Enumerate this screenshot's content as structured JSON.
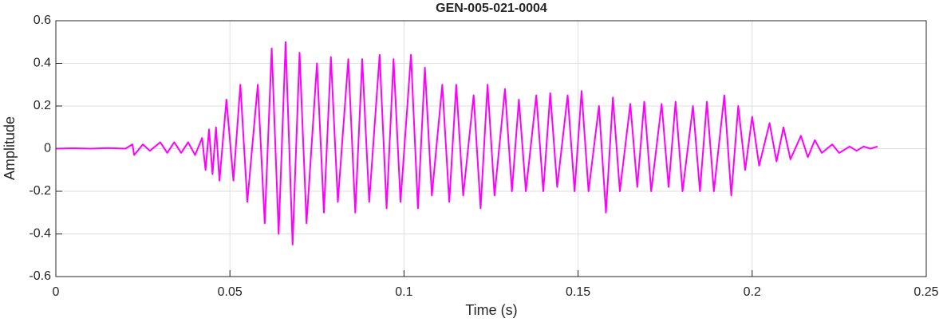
{
  "chart_data": {
    "type": "line",
    "title": "GEN-005-021-0004",
    "xlabel": "Time (s)",
    "ylabel": "Amplitude",
    "xlim": [
      0,
      0.25
    ],
    "xticks": [
      0,
      0.05,
      0.1,
      0.15,
      0.2,
      0.25
    ],
    "ylim": [
      -0.6,
      0.6
    ],
    "yticks": [
      -0.6,
      -0.4,
      -0.2,
      0,
      0.2,
      0.4,
      0.6
    ],
    "grid": true,
    "series": [
      {
        "name": "Amplitude",
        "color": "#ff00ff",
        "x": [
          0,
          0.005,
          0.01,
          0.015,
          0.02,
          0.022,
          0.0225,
          0.025,
          0.027,
          0.03,
          0.032,
          0.034,
          0.036,
          0.038,
          0.04,
          0.042,
          0.043,
          0.044,
          0.045,
          0.046,
          0.047,
          0.049,
          0.051,
          0.053,
          0.055,
          0.058,
          0.06,
          0.062,
          0.064,
          0.066,
          0.068,
          0.07,
          0.072,
          0.075,
          0.077,
          0.079,
          0.081,
          0.084,
          0.086,
          0.088,
          0.09,
          0.093,
          0.095,
          0.097,
          0.099,
          0.102,
          0.104,
          0.106,
          0.108,
          0.111,
          0.113,
          0.115,
          0.117,
          0.12,
          0.122,
          0.124,
          0.126,
          0.129,
          0.131,
          0.133,
          0.135,
          0.138,
          0.14,
          0.142,
          0.144,
          0.147,
          0.149,
          0.151,
          0.153,
          0.156,
          0.158,
          0.16,
          0.162,
          0.165,
          0.167,
          0.169,
          0.171,
          0.174,
          0.176,
          0.178,
          0.18,
          0.183,
          0.185,
          0.187,
          0.189,
          0.192,
          0.194,
          0.196,
          0.198,
          0.2,
          0.202,
          0.205,
          0.207,
          0.209,
          0.211,
          0.214,
          0.216,
          0.218,
          0.22,
          0.223,
          0.225,
          0.228,
          0.23,
          0.232,
          0.234,
          0.236
        ],
        "values": [
          0,
          0.002,
          0,
          0.003,
          0,
          0.02,
          -0.03,
          0.02,
          -0.01,
          0.03,
          -0.02,
          0.03,
          -0.02,
          0.03,
          -0.03,
          0.05,
          -0.1,
          0.09,
          -0.12,
          0.1,
          -0.15,
          0.23,
          -0.15,
          0.3,
          -0.25,
          0.3,
          -0.35,
          0.47,
          -0.4,
          0.5,
          -0.45,
          0.45,
          -0.35,
          0.4,
          -0.3,
          0.43,
          -0.25,
          0.42,
          -0.3,
          0.42,
          -0.25,
          0.44,
          -0.28,
          0.42,
          -0.25,
          0.44,
          -0.28,
          0.38,
          -0.22,
          0.3,
          -0.25,
          0.3,
          -0.22,
          0.25,
          -0.28,
          0.3,
          -0.22,
          0.28,
          -0.2,
          0.23,
          -0.2,
          0.25,
          -0.2,
          0.26,
          -0.18,
          0.25,
          -0.2,
          0.27,
          -0.2,
          0.2,
          -0.3,
          0.24,
          -0.2,
          0.21,
          -0.18,
          0.22,
          -0.2,
          0.21,
          -0.18,
          0.22,
          -0.2,
          0.2,
          -0.2,
          0.22,
          -0.2,
          0.25,
          -0.22,
          0.2,
          -0.1,
          0.15,
          -0.08,
          0.12,
          -0.06,
          0.1,
          -0.05,
          0.06,
          -0.04,
          0.04,
          -0.02,
          0.02,
          -0.02,
          0.01,
          -0.01,
          0.01,
          0,
          0.01
        ]
      }
    ]
  }
}
